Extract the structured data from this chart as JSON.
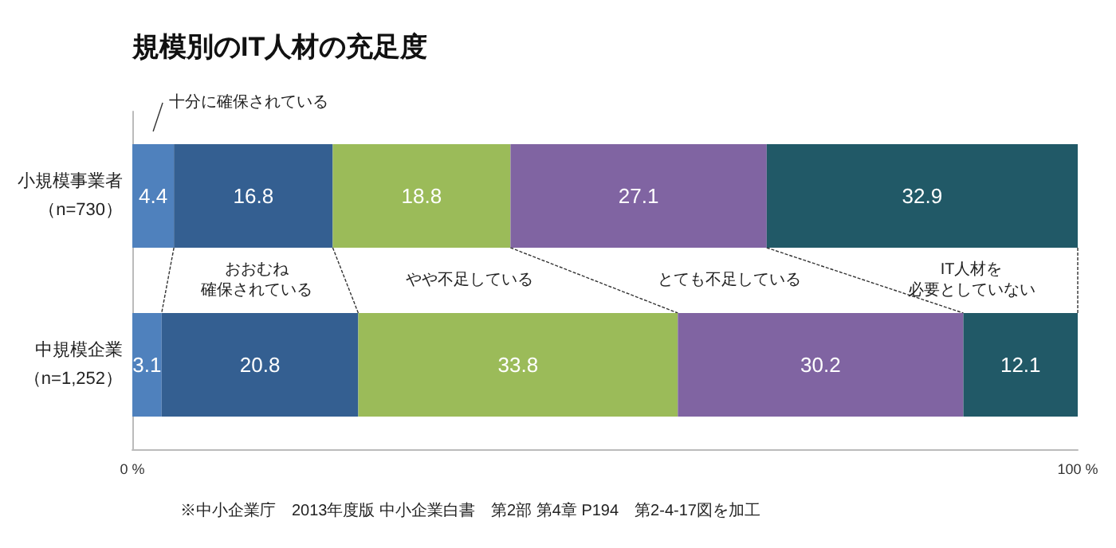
{
  "chart_data": {
    "type": "bar",
    "orientation": "horizontal",
    "stacked": true,
    "title": "規模別のIT人材の充足度",
    "categories": [
      "小規模事業者（n=730）",
      "中規模企業（n=1,252）"
    ],
    "series": [
      {
        "name": "十分に確保されている",
        "color": "#4f81bd",
        "values": [
          4.4,
          3.1
        ]
      },
      {
        "name": "おおむね確保されている",
        "color": "#345f91",
        "values": [
          16.8,
          20.8
        ]
      },
      {
        "name": "やや不足している",
        "color": "#9bbb59",
        "values": [
          18.8,
          33.8
        ]
      },
      {
        "name": "とても不足している",
        "color": "#8064a2",
        "values": [
          27.1,
          30.2
        ]
      },
      {
        "name": "IT人材を必要としていない",
        "color": "#215967",
        "values": [
          32.9,
          12.1
        ]
      }
    ],
    "xlim": [
      0,
      100
    ],
    "xticks": [
      {
        "value": 0,
        "label": "0 %"
      },
      {
        "value": 100,
        "label": "100 %"
      }
    ],
    "data_labels": true,
    "legend": false,
    "grid": false,
    "annotations": [
      "※中小企業庁　2013年度版 中小企業白書　第2部 第4章 P194　第2-4-17図を加工"
    ]
  }
}
